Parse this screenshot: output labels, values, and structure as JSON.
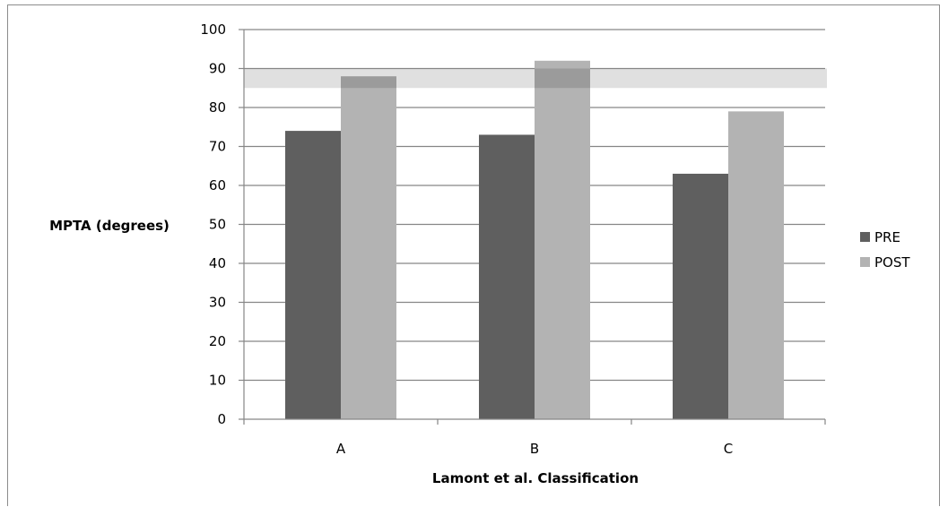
{
  "chart_data": {
    "type": "bar",
    "categories": [
      "A",
      "B",
      "C"
    ],
    "series": [
      {
        "name": "PRE",
        "values": [
          74,
          73,
          63
        ],
        "color": "#5f5f5f"
      },
      {
        "name": "POST",
        "values": [
          88,
          92,
          79
        ],
        "color": "#b3b3b3"
      }
    ],
    "reference_band": {
      "from": 85,
      "to": 90,
      "color": "#e0e0e0"
    },
    "xlabel": "Lamont et al. Classification",
    "ylabel": "MPTA (degrees)",
    "ylim": [
      0,
      100
    ],
    "yticks": [
      0,
      10,
      20,
      30,
      40,
      50,
      60,
      70,
      80,
      90,
      100
    ],
    "grid": true,
    "legend_position": "right",
    "gridline_color": "#868686",
    "axis_color": "#868686"
  }
}
